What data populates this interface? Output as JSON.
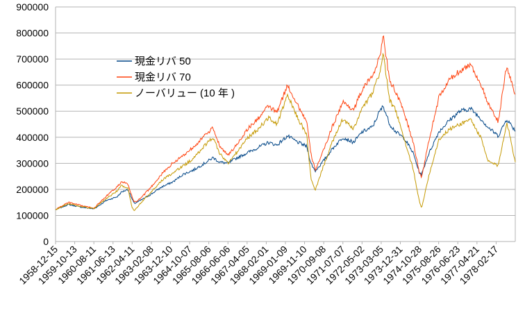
{
  "chart_data": {
    "type": "line",
    "title": "",
    "xlabel": "",
    "ylabel": "",
    "ylim": [
      0,
      900000
    ],
    "yticks": [
      0,
      100000,
      200000,
      300000,
      400000,
      500000,
      600000,
      700000,
      800000,
      900000
    ],
    "ytick_labels": [
      "0",
      "100000",
      "200000",
      "300000",
      "400000",
      "500000",
      "600000",
      "700000",
      "800000",
      "900000"
    ],
    "x_tick_labels": [
      "1958-12-15",
      "1959-10-13",
      "1960-08-11",
      "1961-06-13",
      "1962-04-11",
      "1963-02-08",
      "1963-12-10",
      "1964-10-07",
      "1965-08-06",
      "1966-06-06",
      "1967-04-05",
      "1968-02-01",
      "1969-01-09",
      "1969-11-10",
      "1970-09-08",
      "1971-07-07",
      "1972-05-02",
      "1973-03-05",
      "1973-12-31",
      "1974-10-28",
      "1975-08-26",
      "1976-06-23",
      "1977-04-21",
      "1978-02-17"
    ],
    "x_tick_positions": [
      0,
      0.9,
      1.8,
      2.7,
      3.6,
      4.5,
      5.4,
      6.3,
      7.2,
      8.1,
      9.0,
      9.9,
      10.8,
      11.7,
      12.6,
      13.5,
      14.4,
      15.3,
      16.2,
      17.1,
      18.0,
      18.9,
      19.8,
      20.7
    ],
    "x_range": [
      0,
      21.6
    ],
    "grid": true,
    "legend_position": "upper-left-inside",
    "series": [
      {
        "name": "現金リバ 50",
        "color": "#004586",
        "x": [
          0,
          0.6,
          1.2,
          1.8,
          2.4,
          2.9,
          3.1,
          3.4,
          3.6,
          3.7,
          4.0,
          4.5,
          5.0,
          5.5,
          6.0,
          6.5,
          7.0,
          7.4,
          7.7,
          8.1,
          8.5,
          9.0,
          9.5,
          10.0,
          10.4,
          10.9,
          11.4,
          11.8,
          12.0,
          12.2,
          12.5,
          13.0,
          13.5,
          14.0,
          14.4,
          14.9,
          15.2,
          15.4,
          15.7,
          16.0,
          16.4,
          16.8,
          17.1,
          17.2,
          17.5,
          18.0,
          18.5,
          19.0,
          19.5,
          20.0,
          20.3,
          20.8,
          21.2,
          21.6
        ],
        "values": [
          122000,
          142000,
          132000,
          125000,
          158000,
          172000,
          190000,
          200000,
          162000,
          146000,
          158000,
          182000,
          210000,
          228000,
          258000,
          275000,
          300000,
          322000,
          305000,
          300000,
          320000,
          340000,
          360000,
          380000,
          370000,
          405000,
          380000,
          365000,
          300000,
          270000,
          300000,
          355000,
          400000,
          380000,
          420000,
          440000,
          495000,
          520000,
          450000,
          420000,
          395000,
          340000,
          262000,
          258000,
          330000,
          420000,
          465000,
          500000,
          510000,
          470000,
          440000,
          405000,
          470000,
          425000
        ]
      },
      {
        "name": "現金リバ 70",
        "color": "#ff420e",
        "x": [
          0,
          0.6,
          1.2,
          1.8,
          2.4,
          2.9,
          3.1,
          3.4,
          3.6,
          3.7,
          4.0,
          4.5,
          5.0,
          5.5,
          6.0,
          6.5,
          7.0,
          7.4,
          7.7,
          8.1,
          8.5,
          9.0,
          9.5,
          10.0,
          10.4,
          10.9,
          11.4,
          11.8,
          12.0,
          12.2,
          12.5,
          13.0,
          13.5,
          14.0,
          14.4,
          14.9,
          15.2,
          15.4,
          15.7,
          16.0,
          16.4,
          16.8,
          17.1,
          17.2,
          17.5,
          18.0,
          18.5,
          19.0,
          19.5,
          20.0,
          20.3,
          20.8,
          21.2,
          21.6
        ],
        "values": [
          123000,
          150000,
          138000,
          128000,
          175000,
          210000,
          230000,
          220000,
          170000,
          150000,
          165000,
          210000,
          260000,
          300000,
          330000,
          365000,
          405000,
          435000,
          370000,
          330000,
          370000,
          430000,
          470000,
          520000,
          495000,
          600000,
          520000,
          460000,
          335000,
          275000,
          330000,
          440000,
          535000,
          505000,
          580000,
          640000,
          700000,
          785000,
          620000,
          570000,
          490000,
          380000,
          265000,
          245000,
          370000,
          550000,
          620000,
          655000,
          680000,
          600000,
          530000,
          460000,
          675000,
          560000
        ]
      },
      {
        "name": "ノーバリュー (10 年 )",
        "color": "#c49800",
        "x": [
          0,
          0.6,
          1.2,
          1.8,
          2.4,
          2.9,
          3.1,
          3.4,
          3.6,
          3.7,
          4.0,
          4.5,
          5.0,
          5.5,
          6.0,
          6.5,
          7.0,
          7.4,
          7.7,
          8.1,
          8.5,
          9.0,
          9.5,
          10.0,
          10.4,
          10.9,
          11.4,
          11.8,
          12.0,
          12.2,
          12.5,
          13.0,
          13.5,
          14.0,
          14.4,
          14.9,
          15.2,
          15.4,
          15.7,
          16.0,
          16.4,
          16.8,
          17.1,
          17.2,
          17.5,
          18.0,
          18.5,
          19.0,
          19.5,
          20.0,
          20.3,
          20.8,
          21.2,
          21.6
        ],
        "values": [
          122000,
          146000,
          134000,
          126000,
          165000,
          195000,
          215000,
          205000,
          130000,
          118000,
          148000,
          190000,
          235000,
          262000,
          290000,
          320000,
          368000,
          400000,
          340000,
          300000,
          340000,
          395000,
          430000,
          475000,
          450000,
          560000,
          470000,
          410000,
          240000,
          195000,
          270000,
          380000,
          470000,
          430000,
          510000,
          570000,
          640000,
          720000,
          540000,
          500000,
          385000,
          280000,
          150000,
          128000,
          240000,
          390000,
          430000,
          450000,
          470000,
          395000,
          310000,
          290000,
          460000,
          305000
        ]
      }
    ]
  }
}
